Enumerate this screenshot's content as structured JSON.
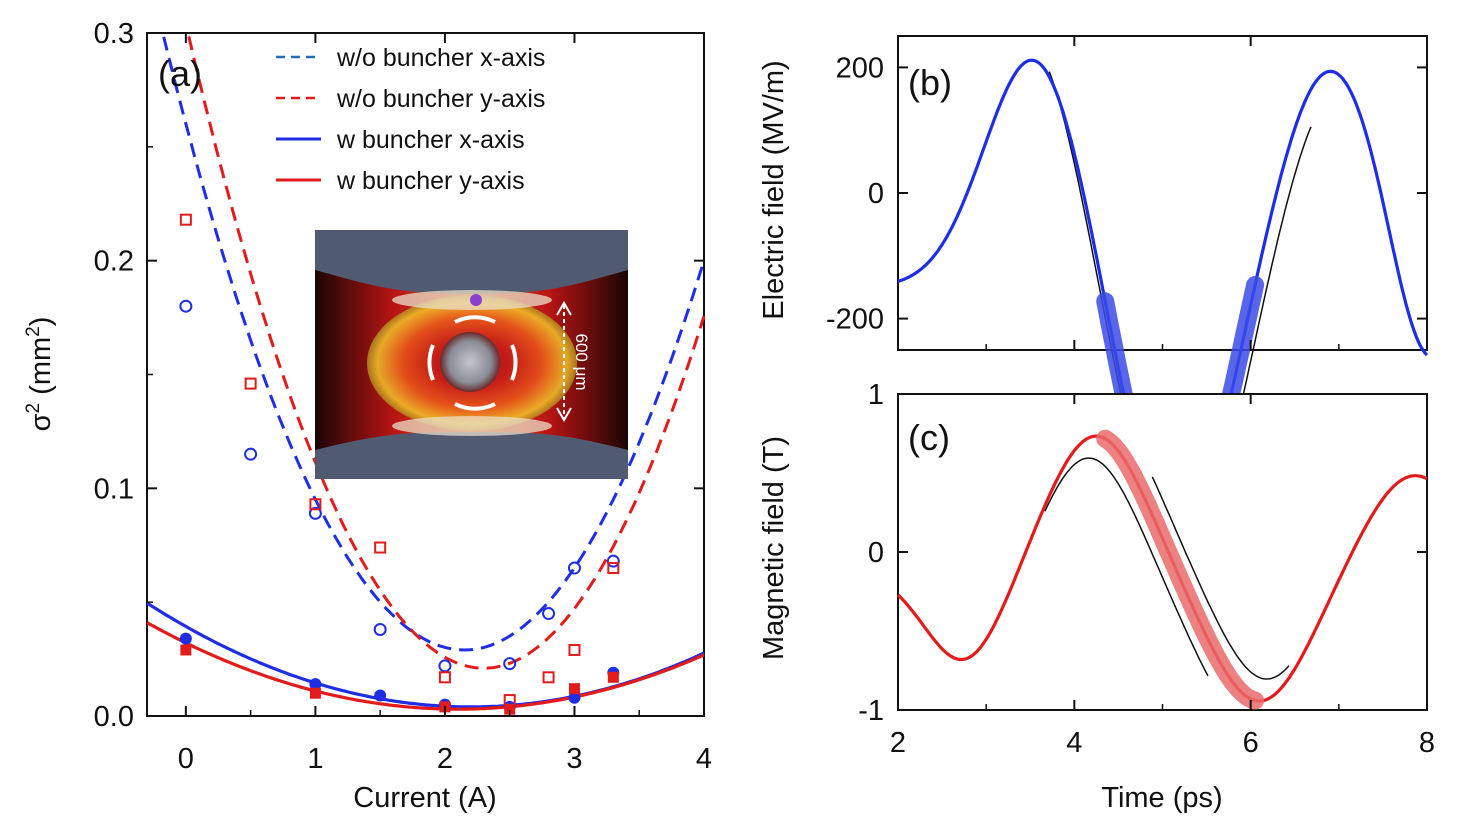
{
  "colors": {
    "blue": "#1e2ee6",
    "red": "#e31b1b",
    "purple": "#8a3fd1",
    "pulse_blue": "#3a4be6",
    "pulse_red": "#ea6a6a",
    "inset_bg": "#505a70"
  },
  "chart_data": [
    {
      "id": "a",
      "type": "scatter",
      "panel_label": "(a)",
      "xlabel": "Current (A)",
      "ylabel_main": "σ",
      "ylabel_sup1": "2",
      "ylabel_mid": " (mm",
      "ylabel_sup2": "2",
      "ylabel_end": ")",
      "xlim": [
        -0.3,
        4.0
      ],
      "ylim": [
        0.0,
        0.3
      ],
      "xticks": [
        0,
        1,
        2,
        3,
        4
      ],
      "xtick_labels": [
        "0",
        "1",
        "2",
        "3",
        "4"
      ],
      "yticks": [
        0.0,
        0.1,
        0.2,
        0.3
      ],
      "ytick_labels": [
        "0.0",
        "0.1",
        "0.2",
        "0.3"
      ],
      "legend": [
        {
          "label": "w/o buncher x-axis",
          "color": "#1e6fb3",
          "dash": true
        },
        {
          "label": "w/o buncher y-axis",
          "color": "#e31b1b",
          "dash": true
        },
        {
          "label": "w buncher x-axis",
          "color": "#1e2ee6",
          "dash": false
        },
        {
          "label": "w buncher y-axis",
          "color": "#e31b1b",
          "dash": false
        }
      ],
      "series": [
        {
          "name": "w/o buncher x-axis",
          "marker": "open-circle",
          "color": "#1e2ee6",
          "x": [
            0,
            0.5,
            1.0,
            1.5,
            2.0,
            2.5,
            2.8,
            3.0,
            3.3
          ],
          "y": [
            0.18,
            0.115,
            0.089,
            0.038,
            0.022,
            0.023,
            0.045,
            0.065,
            0.068
          ],
          "fit": {
            "form": "quadratic",
            "a": 0.05,
            "x0": 2.15,
            "c": 0.029
          }
        },
        {
          "name": "w/o buncher y-axis",
          "marker": "open-square",
          "color": "#e31b1b",
          "x": [
            0,
            0.5,
            1.0,
            1.5,
            2.0,
            2.5,
            2.8,
            3.0,
            3.3
          ],
          "y": [
            0.218,
            0.146,
            0.093,
            0.074,
            0.017,
            0.007,
            0.017,
            0.029,
            0.065
          ],
          "fit": {
            "form": "quadratic",
            "a": 0.0535,
            "x0": 2.3,
            "c": 0.021
          }
        },
        {
          "name": "w buncher x-axis",
          "marker": "filled-circle",
          "color": "#1e2ee6",
          "x": [
            0,
            1.0,
            1.5,
            2.0,
            2.5,
            3.0,
            3.3
          ],
          "y": [
            0.034,
            0.014,
            0.009,
            0.005,
            0.004,
            0.008,
            0.019
          ],
          "fit": {
            "form": "quadratic",
            "a": 0.0073,
            "x0": 2.2,
            "c": 0.004
          }
        },
        {
          "name": "w buncher y-axis",
          "marker": "filled-square",
          "color": "#e31b1b",
          "x": [
            0,
            1.0,
            2.0,
            2.5,
            3.0,
            3.3
          ],
          "y": [
            0.029,
            0.01,
            0.004,
            0.003,
            0.012,
            0.017
          ],
          "fit": {
            "form": "quadratic",
            "a": 0.0066,
            "x0": 2.1,
            "c": 0.003
          }
        }
      ],
      "inset": {
        "scale_label": "600 μm"
      }
    },
    {
      "id": "b",
      "type": "line",
      "panel_label": "(b)",
      "ylabel": "Electric field (MV/m)",
      "xlim": [
        2,
        8
      ],
      "ylim": [
        -250,
        250
      ],
      "xticks": [
        2,
        4,
        6,
        8
      ],
      "yticks": [
        -200,
        0,
        200
      ],
      "ytick_labels": [
        "-200",
        "0",
        "200"
      ],
      "series": [
        {
          "name": "Electric field",
          "color": "#1e2ee6",
          "x_range": [
            2,
            8
          ]
        }
      ],
      "highlight": {
        "x_range": [
          4.35,
          6.05
        ],
        "color": "#3a4be6"
      }
    },
    {
      "id": "c",
      "type": "line",
      "panel_label": "(c)",
      "xlabel": "Time  (ps)",
      "ylabel": "Magnetic field (T)",
      "xlim": [
        2,
        8
      ],
      "ylim": [
        -1,
        1
      ],
      "xticks": [
        2,
        4,
        6,
        8
      ],
      "xtick_labels": [
        "2",
        "4",
        "6",
        "8"
      ],
      "yticks": [
        -1,
        0,
        1
      ],
      "ytick_labels": [
        "-1",
        "0",
        "1"
      ],
      "series": [
        {
          "name": "Magnetic field",
          "color": "#e31b1b",
          "x_range": [
            2,
            8
          ]
        }
      ],
      "highlight": {
        "x_range": [
          4.35,
          6.05
        ],
        "color": "#ea6a6a"
      }
    }
  ]
}
